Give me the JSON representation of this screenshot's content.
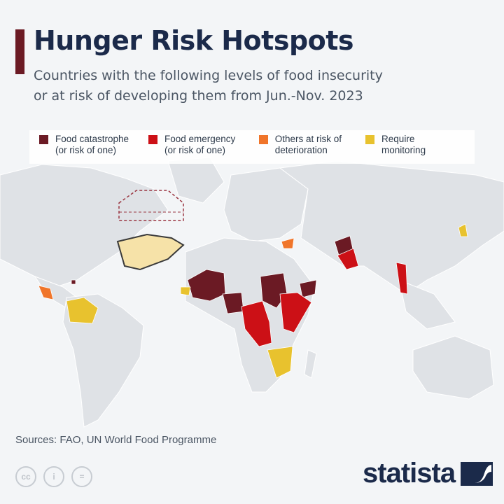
{
  "header": {
    "title": "Hunger Risk Hotspots",
    "subtitle_line1": "Countries with the following levels of food insecurity",
    "subtitle_line2": "or at risk of developing them from Jun.-Nov. 2023"
  },
  "legend": [
    {
      "key": "catastrophe",
      "label": "Food catastrophe\n(or risk of one)",
      "color": "#6b1a24"
    },
    {
      "key": "emergency",
      "label": "Food emergency\n(or risk of one)",
      "color": "#cc1016"
    },
    {
      "key": "risk",
      "label": "Others at risk of\ndeterioration",
      "color": "#f0752a"
    },
    {
      "key": "monitoring",
      "label": "Require\nmonitoring",
      "color": "#e8c22e"
    }
  ],
  "colors": {
    "land": "#dfe2e6",
    "sea": "#f3f5f7",
    "title": "#1b2a4a",
    "accent_bar": "#6b1a24"
  },
  "footer": {
    "sources": "Sources: FAO, UN World Food Programme",
    "brand": "statista",
    "license_icons": [
      "cc-icon",
      "by-icon",
      "nd-icon"
    ]
  },
  "illustration": "hand-holding-bowl-icon"
}
